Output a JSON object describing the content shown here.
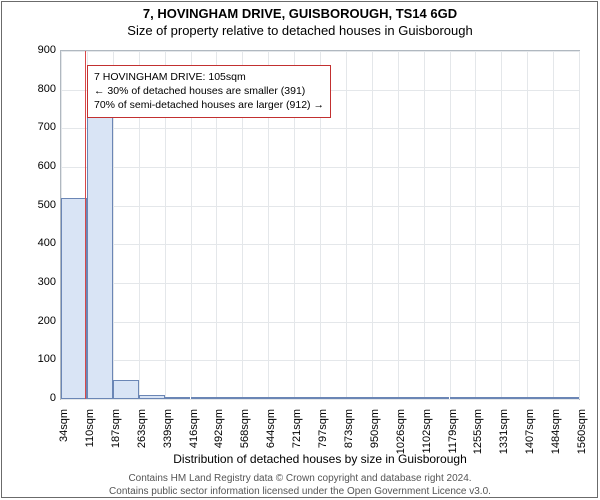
{
  "titles": {
    "line1": "7, HOVINGHAM DRIVE, GUISBOROUGH, TS14 6GD",
    "line2": "Size of property relative to detached houses in Guisborough"
  },
  "chart": {
    "type": "histogram",
    "ylabel": "Number of detached properties",
    "xlabel": "Distribution of detached houses by size in Guisborough",
    "ylim": [
      0,
      900
    ],
    "ytick_step": 100,
    "yticks": [
      0,
      100,
      200,
      300,
      400,
      500,
      600,
      700,
      800,
      900
    ],
    "xticks": [
      "34sqm",
      "110sqm",
      "187sqm",
      "263sqm",
      "339sqm",
      "416sqm",
      "492sqm",
      "568sqm",
      "644sqm",
      "721sqm",
      "797sqm",
      "873sqm",
      "950sqm",
      "1026sqm",
      "1102sqm",
      "1179sqm",
      "1255sqm",
      "1331sqm",
      "1407sqm",
      "1484sqm",
      "1560sqm"
    ],
    "xtick_min": 34,
    "xtick_max": 1560,
    "bars_x_start": 34,
    "bars_x_end": 1560,
    "bars": [
      520,
      730,
      50,
      10,
      6,
      4,
      3,
      2,
      2,
      2,
      2,
      2,
      2,
      2,
      2,
      2,
      2,
      2,
      2,
      2
    ],
    "bar_fill": "#d9e4f5",
    "bar_border": "#6b86b5",
    "grid_color": "#e4e7ea",
    "axis_border": "#b0b8c0",
    "background": "#ffffff",
    "bar_width_ratio": 1.0,
    "marker": {
      "x_value": 105,
      "color": "#d94848"
    }
  },
  "annotation": {
    "lines": [
      "7 HOVINGHAM DRIVE: 105sqm",
      "← 30% of detached houses are smaller (391)",
      "70% of semi-detached houses are larger (912) →"
    ],
    "border_color": "#c23030",
    "background": "#ffffff",
    "fontsize": 10.5
  },
  "footer": {
    "line1": "Contains HM Land Registry data © Crown copyright and database right 2024.",
    "line2": "Contains public sector information licensed under the Open Government Licence v3.0."
  }
}
